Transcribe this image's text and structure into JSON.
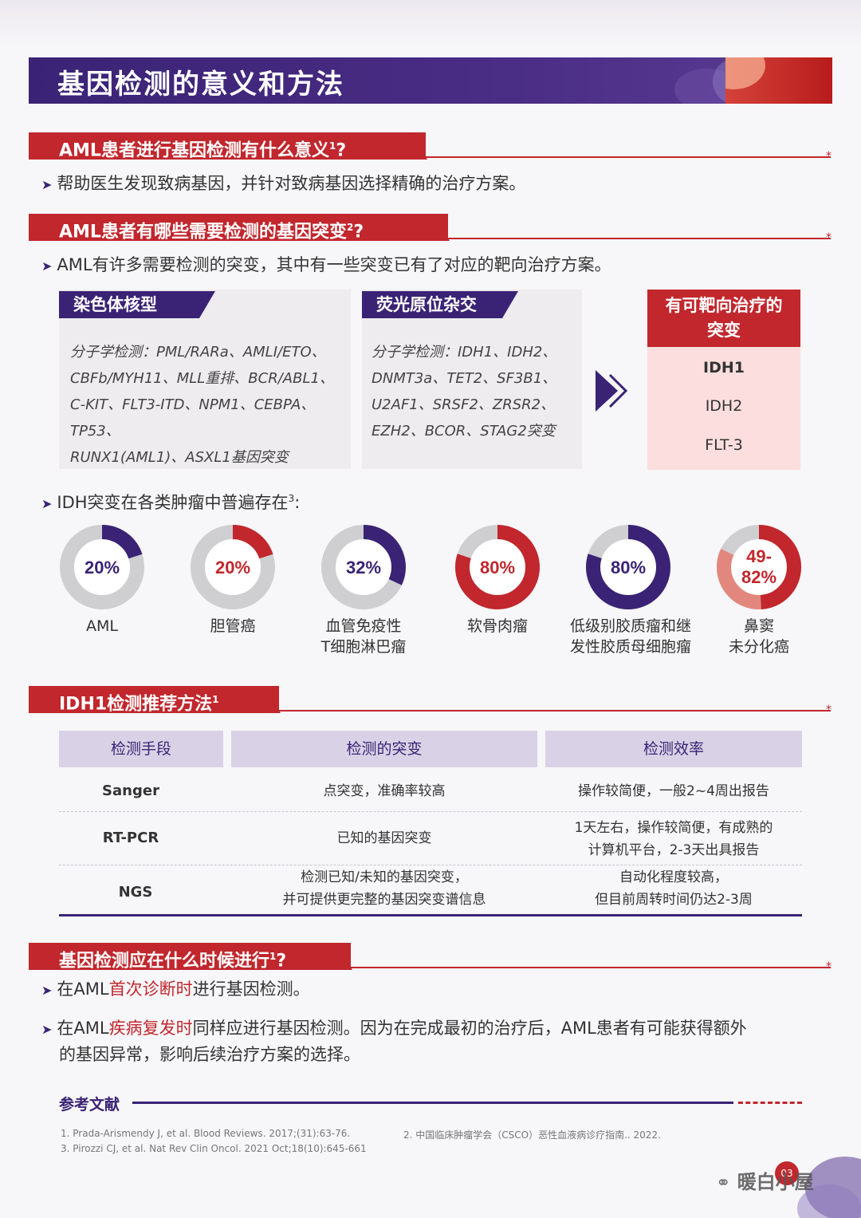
{
  "title": "基因检测的意义和方法",
  "s1": {
    "heading": "AML患者进行基因检测有什么意义",
    "sup": "1",
    "q": "?",
    "bullet": "帮助医生发现致病基因，并针对致病基因选择精确的治疗方案。"
  },
  "s2": {
    "heading": "AML患者有哪些需要检测的基因突变",
    "sup": "2",
    "q": "?",
    "bullet": "AML有许多需要检测的突变，其中有一些突变已有了对应的靶向治疗方案。",
    "box1": {
      "title": "染色体核型",
      "lines": [
        "分子学检测：PML/RARa、AMLI/ETO、",
        "CBFb/MYH11、MLL重排、BCR/ABL1、",
        "C-KIT、FLT3-ITD、NPM1、CEBPA、TP53、",
        "RUNX1(AML1)、ASXL1基因突变"
      ]
    },
    "box2": {
      "title": "荧光原位杂交",
      "lines": [
        "分子学检测：IDH1、IDH2、",
        "DNMT3a、TET2、SF3B1、",
        "U2AF1、SRSF2、ZRSR2、",
        "EZH2、BCOR、STAG2突变"
      ]
    },
    "target": {
      "title_l1": "有可靶向治疗的",
      "title_l2": "突变",
      "items": [
        "IDH1",
        "IDH2",
        "FLT-3"
      ]
    }
  },
  "idh": {
    "bullet": "IDH突变在各类肿瘤中普遍存在",
    "sup": "3",
    "colon": ":"
  },
  "chart_data": {
    "type": "pie",
    "items": [
      {
        "value_label": "20%",
        "value": 20,
        "label_l1": "AML",
        "label_l2": "",
        "color": "#3a2375"
      },
      {
        "value_label": "20%",
        "value": 20,
        "label_l1": "胆管癌",
        "label_l2": "",
        "color": "#c1272d"
      },
      {
        "value_label": "32%",
        "value": 32,
        "label_l1": "血管免疫性",
        "label_l2": "T细胞淋巴瘤",
        "color": "#3a2375"
      },
      {
        "value_label": "80%",
        "value": 80,
        "label_l1": "软骨肉瘤",
        "label_l2": "",
        "color": "#c1272d"
      },
      {
        "value_label": "80%",
        "value": 80,
        "label_l1": "低级别胶质瘤和继",
        "label_l2": "发性胶质母细胞瘤",
        "color": "#3a2375"
      },
      {
        "value_label_l1": "49-",
        "value_label_l2": "82%",
        "value_low": 49,
        "value": 82,
        "label_l1": "鼻窦",
        "label_l2": "未分化癌",
        "color": "#c1272d"
      }
    ]
  },
  "s3": {
    "heading": "IDH1检测推荐方法",
    "sup": "1",
    "headers": [
      "检测手段",
      "检测的突变",
      "检测效率"
    ],
    "rows": [
      {
        "method": "Sanger",
        "mut_l1": "点突变，准确率较高",
        "mut_l2": "",
        "eff_l1": "操作较简便，一般2~4周出报告",
        "eff_l2": ""
      },
      {
        "method": "RT-PCR",
        "mut_l1": "已知的基因突变",
        "mut_l2": "",
        "eff_l1": "1天左右，操作较简便，有成熟的",
        "eff_l2": "计算机平台，2-3天出具报告"
      },
      {
        "method": "NGS",
        "mut_l1": "检测已知/未知的基因突变，",
        "mut_l2": "并可提供更完整的基因突变谱信息",
        "eff_l1": "自动化程度较高，",
        "eff_l2": "但目前周转时间仍达2-3周"
      }
    ]
  },
  "s4": {
    "heading": "基因检测应在什么时候进行",
    "sup": "1",
    "q": "?",
    "b1_pre": "在AML",
    "b1_red": "首次诊断时",
    "b1_post": "进行基因检测。",
    "b2_pre": "在AML",
    "b2_red": "疾病复发时",
    "b2_post": "同样应进行基因检测。因为在完成最初的治疗后，AML患者有可能获得额外",
    "b2_line2": "的基因异常，影响后续治疗方案的选择。"
  },
  "refs": {
    "title": "参考文献",
    "r1": "1. Prada-Arismendy J, et al. Blood Reviews. 2017;(31):63-76.",
    "r2": "2. 中国临床肿瘤学会（CSCO）恶性血液病诊疗指南.. 2022.",
    "r3": "3. Pirozzi CJ, et al. Nat Rev Clin Oncol. 2021 Oct;18(10):645-661"
  },
  "watermark": "暖白小屋",
  "page_number": "03"
}
